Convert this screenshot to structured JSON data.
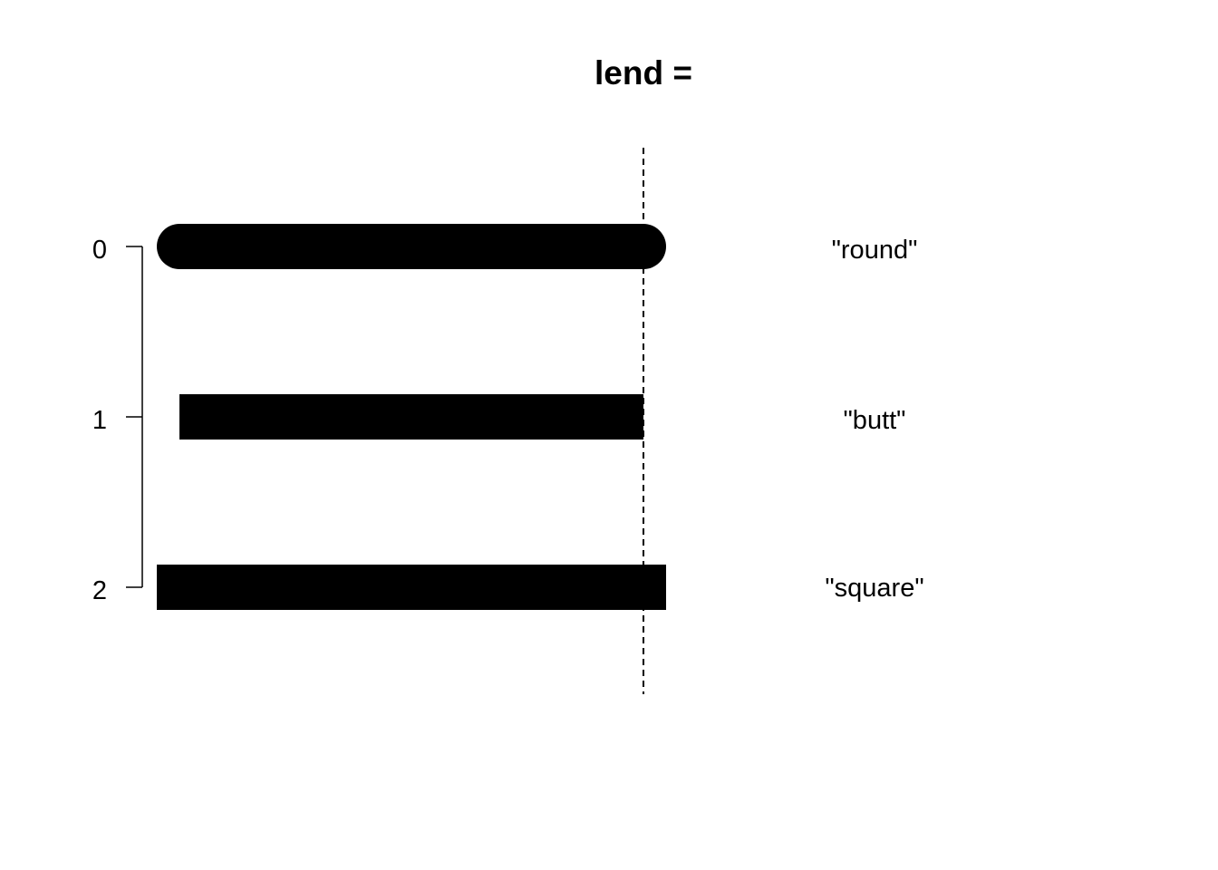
{
  "title": "lend =",
  "colors": {
    "ink": "#000000",
    "background": "#ffffff"
  },
  "reference_line": {
    "style": "dashed"
  },
  "axis": {
    "side": "left",
    "ticks": [
      "0",
      "1",
      "2"
    ]
  },
  "line_ends": [
    {
      "code": "0",
      "cap": "round",
      "label": "\"round\""
    },
    {
      "code": "1",
      "cap": "butt",
      "label": "\"butt\""
    },
    {
      "code": "2",
      "cap": "square",
      "label": "\"square\""
    }
  ]
}
